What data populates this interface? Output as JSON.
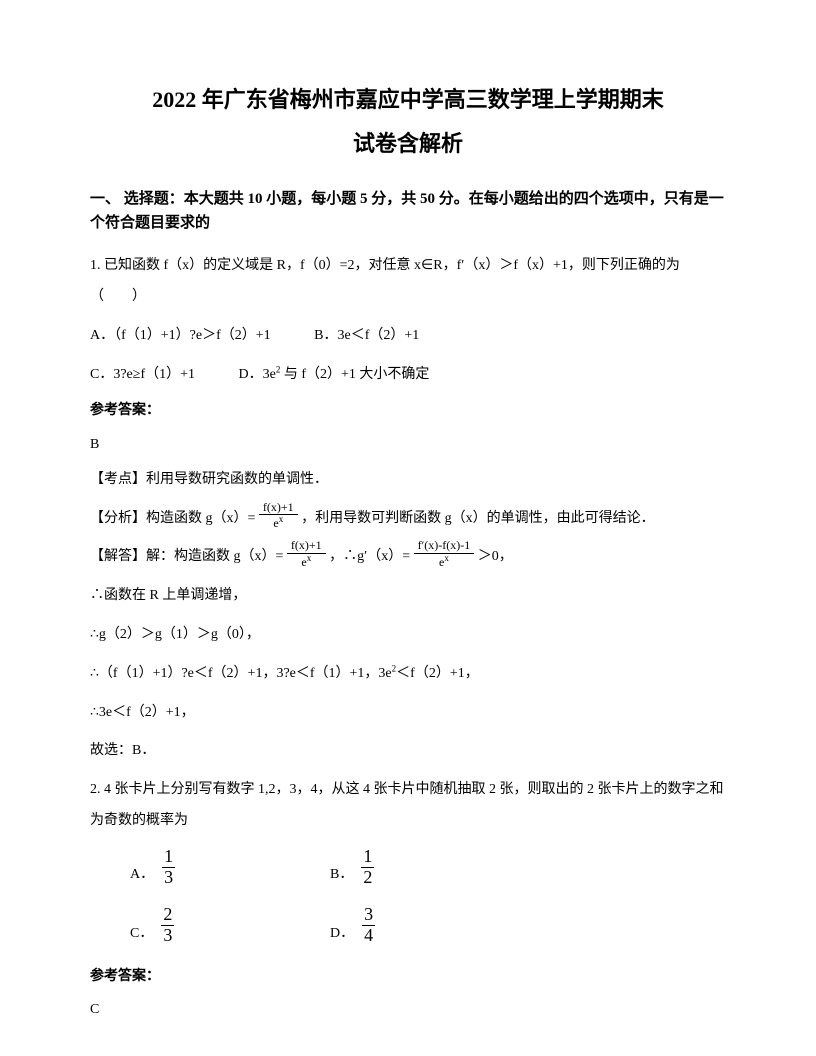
{
  "title_line1": "2022 年广东省梅州市嘉应中学高三数学理上学期期末",
  "title_line2": "试卷含解析",
  "section1_heading": "一、 选择题：本大题共 10 小题，每小题 5 分，共 50 分。在每小题给出的四个选项中，只有是一个符合题目要求的",
  "q1": {
    "text": "1. 已知函数 f（x）的定义域是 R，f（0）=2，对任意 x∈R，f′（x）＞f（x）+1，则下列正确的为（　　）",
    "optA": "A．（f（1）+1）?e＞f（2）+1",
    "optB": "B．3e＜f（2）+1",
    "optC": "C．3?e≥f（1）+1",
    "optD": "D．3e",
    "optD_sup": "2",
    "optD_tail": " 与 f（2）+1 大小不确定",
    "answer_label": "参考答案：",
    "answer": "B",
    "kaodian": "【考点】利用导数研究函数的单调性．",
    "fenxi_prefix": "【分析】构造函数 g（x）= ",
    "frac1_top": "f(x)+1",
    "frac1_bot": "e",
    "frac1_bot_sup": "x",
    "fenxi_suffix": " ，利用导数可判断函数 g（x）的单调性，由此可得结论．",
    "jie_prefix": "【解答】解：构造函数 g（x）= ",
    "jie_mid": " ，∴g′（x）= ",
    "frac2_top": "f′(x)-f(x)-1",
    "frac2_bot": "e",
    "frac2_bot_sup": "x",
    "jie_suffix": " ＞0，",
    "step1": "∴函数在 R 上单调递增，",
    "step2": "∴g（2）＞g（1）＞g（0），",
    "step3_a": "∴（f（1）+1）?e＜f（2）+1，3?e＜f（1）+1，3e",
    "step3_sup": "2",
    "step3_b": "＜f（2）+1，",
    "step4": "∴3e＜f（2）+1，",
    "step5": "故选：B．"
  },
  "q2": {
    "text": "2. 4 张卡片上分别写有数字 1,2，3，4，从这 4 张卡片中随机抽取 2 张，则取出的 2 张卡片上的数字之和为奇数的概率为",
    "optA_label": "A．",
    "optA_top": "1",
    "optA_bot": "3",
    "optB_label": "B．",
    "optB_top": "1",
    "optB_bot": "2",
    "optC_label": "C．",
    "optC_top": "2",
    "optC_bot": "3",
    "optD_label": "D．",
    "optD_top": "3",
    "optD_bot": "4",
    "answer_label": "参考答案：",
    "answer": "C"
  }
}
